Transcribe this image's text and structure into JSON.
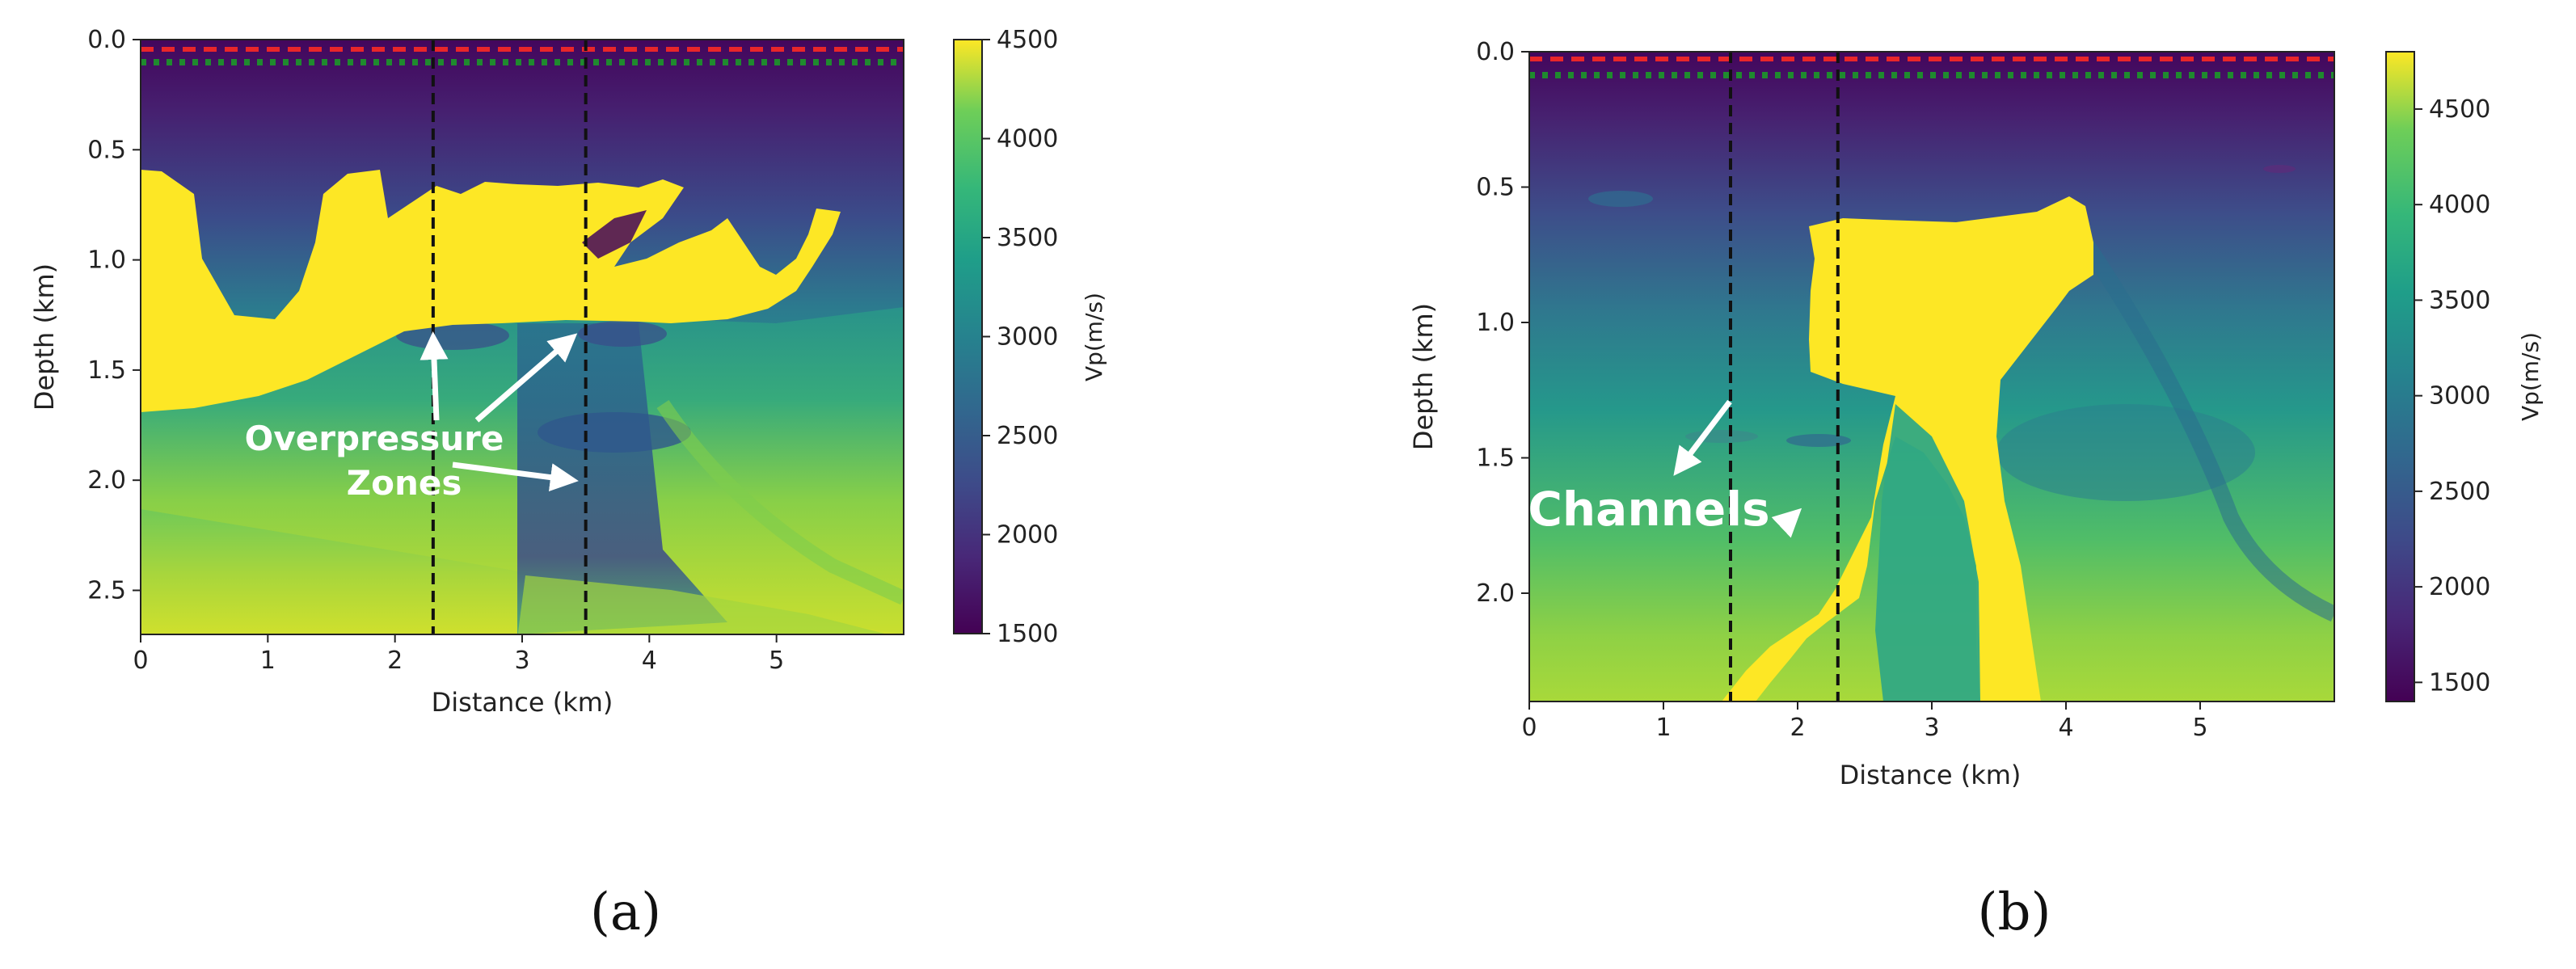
{
  "chart_data": [
    {
      "type": "heatmap",
      "panel_label": "(a)",
      "xlabel": "Distance (km)",
      "ylabel": "Depth (km)",
      "xlim": [
        0,
        6
      ],
      "ylim": [
        2.7,
        0
      ],
      "xticks": [
        "0",
        "1",
        "2",
        "3",
        "4",
        "5"
      ],
      "xtick_values": [
        0,
        1,
        2,
        3,
        4,
        5
      ],
      "yticks": [
        "0.0",
        "0.5",
        "1.0",
        "1.5",
        "2.0",
        "2.5"
      ],
      "ytick_values": [
        0,
        0.5,
        1.0,
        1.5,
        2.0,
        2.5
      ],
      "colorbar": {
        "label": "Vp(m/s)",
        "min": 1500,
        "max": 4500,
        "ticks": [
          "1500",
          "2000",
          "2500",
          "3000",
          "3500",
          "4000",
          "4500"
        ],
        "tick_values": [
          1500,
          2000,
          2500,
          3000,
          3500,
          4000,
          4500
        ]
      },
      "colormap": "viridis",
      "vertical_lines_km": [
        2.3,
        3.5
      ],
      "source_depth_km": 0.04,
      "receiver_depth_km": 0.1,
      "annotation": {
        "lines": [
          "Overpressure",
          "Zones"
        ]
      },
      "arrow_targets_km": [
        [
          2.3,
          1.35
        ],
        [
          3.4,
          1.35
        ],
        [
          3.4,
          2.0
        ]
      ]
    },
    {
      "type": "heatmap",
      "panel_label": "(b)",
      "xlabel": "Distance (km)",
      "ylabel": "Depth (km)",
      "xlim": [
        0,
        6
      ],
      "ylim": [
        2.4,
        0
      ],
      "xticks": [
        "0",
        "1",
        "2",
        "3",
        "4",
        "5"
      ],
      "xtick_values": [
        0,
        1,
        2,
        3,
        4,
        5
      ],
      "yticks": [
        "0.0",
        "0.5",
        "1.0",
        "1.5",
        "2.0"
      ],
      "ytick_values": [
        0,
        0.5,
        1.0,
        1.5,
        2.0
      ],
      "colorbar": {
        "label": "Vp(m/s)",
        "min": 1400,
        "max": 4800,
        "ticks": [
          "1500",
          "2000",
          "2500",
          "3000",
          "3500",
          "4000",
          "4500"
        ],
        "tick_values": [
          1500,
          2000,
          2500,
          3000,
          3500,
          4000,
          4500
        ]
      },
      "colormap": "viridis",
      "vertical_lines_km": [
        1.5,
        2.3
      ],
      "source_depth_km": 0.03,
      "receiver_depth_km": 0.1,
      "annotation": {
        "lines": [
          "Channels"
        ]
      },
      "arrow_targets_km": [
        [
          1.1,
          1.55
        ],
        [
          2.0,
          1.7
        ]
      ]
    }
  ]
}
